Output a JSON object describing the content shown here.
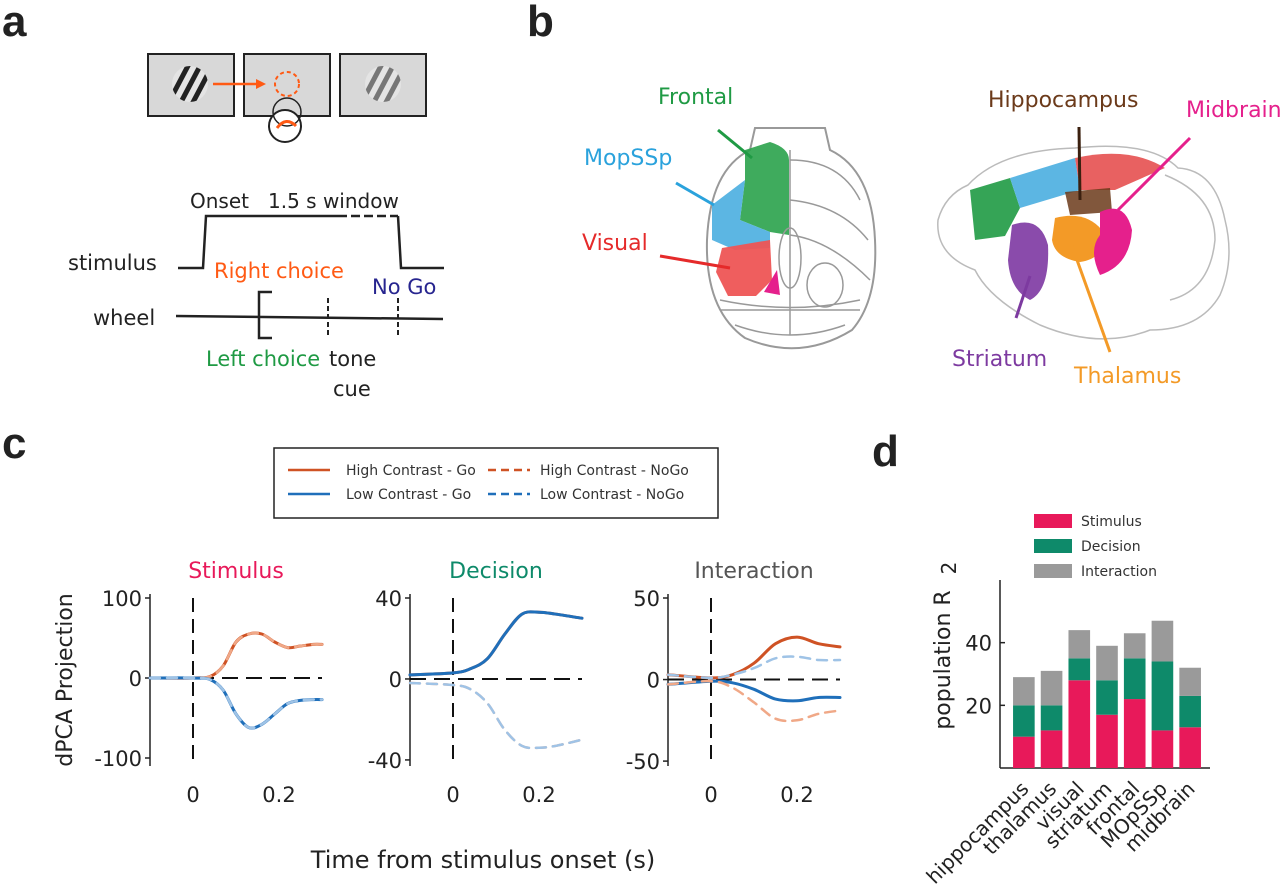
{
  "panels": {
    "a": "a",
    "b": "b",
    "c": "c",
    "d": "d"
  },
  "colors": {
    "right": "#ff5a14",
    "left": "#1f9a44",
    "nogo": "#27258f",
    "frontal": "#1f9a44",
    "mopssp": "#2aa2dc",
    "visual": "#e52a2a",
    "hippocampus": "#6b3a1a",
    "midbrain": "#e5208c",
    "striatum": "#7d3aa0",
    "thalamus": "#f39a27",
    "high_contrast": "#cf5224",
    "low_contrast": "#1f6fba",
    "stimulus": "#e8195a",
    "decision": "#0e8a6a",
    "interaction": "#9a9a9a"
  },
  "panel_a": {
    "onset": "Onset",
    "window": "1.5 s window",
    "stimulus": "stimulus",
    "wheel": "wheel",
    "right_choice": "Right choice",
    "no_go": "No Go",
    "left_choice": "Left choice",
    "tone": "tone",
    "cue": "cue"
  },
  "panel_b": {
    "frontal": "Frontal",
    "mopssp": "MopSSp",
    "visual": "Visual",
    "hippocampus": "Hippocampus",
    "midbrain": "Midbrain",
    "striatum": "Striatum",
    "thalamus": "Thalamus"
  },
  "panel_c": {
    "legend": [
      "High Contrast - Go",
      "Low Contrast - Go",
      "High Contrast - NoGo",
      "Low Contrast - NoGo"
    ],
    "ylabel": "dPCA Projection",
    "xlabel": "Time from stimulus onset (s)",
    "x_ticks": [
      "0",
      "0.2"
    ]
  },
  "chart_data": [
    {
      "type": "line",
      "title": "Stimulus",
      "xlim": [
        -0.1,
        0.3
      ],
      "ylim": [
        -110,
        100
      ],
      "yticks": [
        "100",
        "0",
        "-100"
      ],
      "xticks": [
        "0",
        "0.2"
      ],
      "series": [
        {
          "name": "High Contrast - Go",
          "x": [
            -0.1,
            0,
            0.04,
            0.07,
            0.1,
            0.13,
            0.16,
            0.19,
            0.22,
            0.25,
            0.28,
            0.3
          ],
          "y": [
            0,
            0,
            2,
            15,
            45,
            55,
            55,
            45,
            38,
            40,
            42,
            42
          ]
        },
        {
          "name": "High Contrast - NoGo",
          "x": [
            -0.1,
            0,
            0.04,
            0.07,
            0.1,
            0.13,
            0.16,
            0.19,
            0.22,
            0.25,
            0.28,
            0.3
          ],
          "y": [
            0,
            0,
            2,
            15,
            45,
            55,
            55,
            45,
            38,
            40,
            42,
            42
          ]
        },
        {
          "name": "Low Contrast - Go",
          "x": [
            -0.1,
            0,
            0.04,
            0.07,
            0.1,
            0.13,
            0.16,
            0.19,
            0.22,
            0.25,
            0.28,
            0.3
          ],
          "y": [
            0,
            0,
            -2,
            -15,
            -45,
            -62,
            -58,
            -45,
            -32,
            -28,
            -27,
            -27
          ]
        },
        {
          "name": "Low Contrast - NoGo",
          "x": [
            -0.1,
            0,
            0.04,
            0.07,
            0.1,
            0.13,
            0.16,
            0.19,
            0.22,
            0.25,
            0.28,
            0.3
          ],
          "y": [
            0,
            0,
            -2,
            -15,
            -45,
            -62,
            -58,
            -45,
            -32,
            -28,
            -27,
            -27
          ]
        }
      ]
    },
    {
      "type": "line",
      "title": "Decision",
      "xlim": [
        -0.1,
        0.3
      ],
      "ylim": [
        -43,
        40
      ],
      "yticks": [
        "40",
        "0",
        "-40"
      ],
      "xticks": [
        "0",
        "0.2"
      ],
      "series": [
        {
          "name": "High Contrast - Go",
          "x": [
            -0.1,
            0,
            0.04,
            0.08,
            0.12,
            0.16,
            0.2,
            0.24,
            0.3
          ],
          "y": [
            2,
            3,
            5,
            10,
            22,
            32,
            33,
            32,
            30
          ]
        },
        {
          "name": "High Contrast - NoGo",
          "x": [
            -0.1,
            0,
            0.04,
            0.08,
            0.12,
            0.16,
            0.2,
            0.24,
            0.3
          ],
          "y": [
            -2,
            -3,
            -5,
            -12,
            -25,
            -33,
            -34,
            -33,
            -30
          ]
        },
        {
          "name": "Low Contrast - Go",
          "x": [
            -0.1,
            0,
            0.04,
            0.08,
            0.12,
            0.16,
            0.2,
            0.24,
            0.3
          ],
          "y": [
            2,
            3,
            5,
            10,
            22,
            32,
            33,
            32,
            30
          ]
        },
        {
          "name": "Low Contrast - NoGo",
          "x": [
            -0.1,
            0,
            0.04,
            0.08,
            0.12,
            0.16,
            0.2,
            0.24,
            0.3
          ],
          "y": [
            -2,
            -3,
            -5,
            -12,
            -25,
            -33,
            -34,
            -33,
            -30
          ]
        }
      ]
    },
    {
      "type": "line",
      "title": "Interaction",
      "xlim": [
        -0.1,
        0.3
      ],
      "ylim": [
        -53,
        50
      ],
      "yticks": [
        "50",
        "0",
        "-50"
      ],
      "xticks": [
        "0",
        "0.2"
      ],
      "series": [
        {
          "name": "High Contrast - Go",
          "x": [
            -0.1,
            0,
            0.05,
            0.1,
            0.15,
            0.2,
            0.25,
            0.3
          ],
          "y": [
            3,
            1,
            3,
            10,
            22,
            26,
            22,
            20
          ]
        },
        {
          "name": "Low Contrast - Go",
          "x": [
            -0.1,
            0,
            0.05,
            0.1,
            0.15,
            0.2,
            0.25,
            0.3
          ],
          "y": [
            -3,
            -1,
            -2,
            -6,
            -12,
            -13,
            -11,
            -11
          ]
        },
        {
          "name": "High Contrast - NoGo",
          "x": [
            -0.1,
            0,
            0.05,
            0.1,
            0.15,
            0.2,
            0.25,
            0.3
          ],
          "y": [
            -3,
            -1,
            -5,
            -14,
            -24,
            -25,
            -21,
            -19
          ]
        },
        {
          "name": "Low Contrast - NoGo",
          "x": [
            -0.1,
            0,
            0.05,
            0.1,
            0.15,
            0.2,
            0.25,
            0.3
          ],
          "y": [
            3,
            1,
            3,
            7,
            13,
            14,
            12,
            12
          ]
        }
      ]
    },
    {
      "type": "bar",
      "stacked": true,
      "ylabel": "population R",
      "ylabel_sup": "2",
      "ylim": [
        0,
        60
      ],
      "yticks": [
        "20",
        "40"
      ],
      "categories": [
        "hippocampus",
        "thalamus",
        "visual",
        "striatum",
        "frontal",
        "MOpSSp",
        "midbrain"
      ],
      "series": [
        {
          "name": "Stimulus",
          "values": [
            10,
            12,
            28,
            17,
            22,
            12,
            13
          ]
        },
        {
          "name": "Decision",
          "values": [
            10,
            8,
            7,
            11,
            13,
            22,
            10
          ]
        },
        {
          "name": "Interaction",
          "values": [
            9,
            11,
            9,
            11,
            8,
            13,
            9
          ]
        }
      ]
    }
  ]
}
